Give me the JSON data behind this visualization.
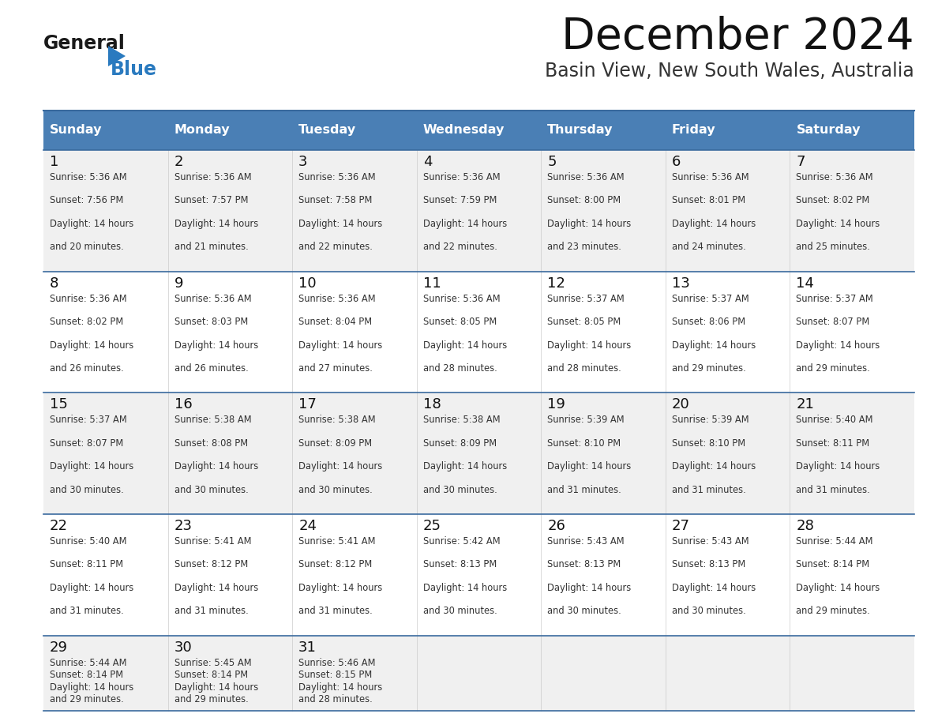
{
  "title": "December 2024",
  "subtitle": "Basin View, New South Wales, Australia",
  "header_color": "#4a7fb5",
  "header_text_color": "#ffffff",
  "days_of_week": [
    "Sunday",
    "Monday",
    "Tuesday",
    "Wednesday",
    "Thursday",
    "Friday",
    "Saturday"
  ],
  "row_bg_even": "#f0f0f0",
  "row_bg_odd": "#ffffff",
  "separator_color": "#3a6a9e",
  "text_color": "#333333",
  "logo_general_color": "#1a1a1a",
  "logo_blue_color": "#2a7abf",
  "logo_triangle_color": "#2a7abf",
  "calendar_data": [
    [
      {
        "day": 1,
        "sunrise": "5:36 AM",
        "sunset": "7:56 PM",
        "daylight": "14 hours and 20 minutes."
      },
      {
        "day": 2,
        "sunrise": "5:36 AM",
        "sunset": "7:57 PM",
        "daylight": "14 hours and 21 minutes."
      },
      {
        "day": 3,
        "sunrise": "5:36 AM",
        "sunset": "7:58 PM",
        "daylight": "14 hours and 22 minutes."
      },
      {
        "day": 4,
        "sunrise": "5:36 AM",
        "sunset": "7:59 PM",
        "daylight": "14 hours and 22 minutes."
      },
      {
        "day": 5,
        "sunrise": "5:36 AM",
        "sunset": "8:00 PM",
        "daylight": "14 hours and 23 minutes."
      },
      {
        "day": 6,
        "sunrise": "5:36 AM",
        "sunset": "8:01 PM",
        "daylight": "14 hours and 24 minutes."
      },
      {
        "day": 7,
        "sunrise": "5:36 AM",
        "sunset": "8:02 PM",
        "daylight": "14 hours and 25 minutes."
      }
    ],
    [
      {
        "day": 8,
        "sunrise": "5:36 AM",
        "sunset": "8:02 PM",
        "daylight": "14 hours and 26 minutes."
      },
      {
        "day": 9,
        "sunrise": "5:36 AM",
        "sunset": "8:03 PM",
        "daylight": "14 hours and 26 minutes."
      },
      {
        "day": 10,
        "sunrise": "5:36 AM",
        "sunset": "8:04 PM",
        "daylight": "14 hours and 27 minutes."
      },
      {
        "day": 11,
        "sunrise": "5:36 AM",
        "sunset": "8:05 PM",
        "daylight": "14 hours and 28 minutes."
      },
      {
        "day": 12,
        "sunrise": "5:37 AM",
        "sunset": "8:05 PM",
        "daylight": "14 hours and 28 minutes."
      },
      {
        "day": 13,
        "sunrise": "5:37 AM",
        "sunset": "8:06 PM",
        "daylight": "14 hours and 29 minutes."
      },
      {
        "day": 14,
        "sunrise": "5:37 AM",
        "sunset": "8:07 PM",
        "daylight": "14 hours and 29 minutes."
      }
    ],
    [
      {
        "day": 15,
        "sunrise": "5:37 AM",
        "sunset": "8:07 PM",
        "daylight": "14 hours and 30 minutes."
      },
      {
        "day": 16,
        "sunrise": "5:38 AM",
        "sunset": "8:08 PM",
        "daylight": "14 hours and 30 minutes."
      },
      {
        "day": 17,
        "sunrise": "5:38 AM",
        "sunset": "8:09 PM",
        "daylight": "14 hours and 30 minutes."
      },
      {
        "day": 18,
        "sunrise": "5:38 AM",
        "sunset": "8:09 PM",
        "daylight": "14 hours and 30 minutes."
      },
      {
        "day": 19,
        "sunrise": "5:39 AM",
        "sunset": "8:10 PM",
        "daylight": "14 hours and 31 minutes."
      },
      {
        "day": 20,
        "sunrise": "5:39 AM",
        "sunset": "8:10 PM",
        "daylight": "14 hours and 31 minutes."
      },
      {
        "day": 21,
        "sunrise": "5:40 AM",
        "sunset": "8:11 PM",
        "daylight": "14 hours and 31 minutes."
      }
    ],
    [
      {
        "day": 22,
        "sunrise": "5:40 AM",
        "sunset": "8:11 PM",
        "daylight": "14 hours and 31 minutes."
      },
      {
        "day": 23,
        "sunrise": "5:41 AM",
        "sunset": "8:12 PM",
        "daylight": "14 hours and 31 minutes."
      },
      {
        "day": 24,
        "sunrise": "5:41 AM",
        "sunset": "8:12 PM",
        "daylight": "14 hours and 31 minutes."
      },
      {
        "day": 25,
        "sunrise": "5:42 AM",
        "sunset": "8:13 PM",
        "daylight": "14 hours and 30 minutes."
      },
      {
        "day": 26,
        "sunrise": "5:43 AM",
        "sunset": "8:13 PM",
        "daylight": "14 hours and 30 minutes."
      },
      {
        "day": 27,
        "sunrise": "5:43 AM",
        "sunset": "8:13 PM",
        "daylight": "14 hours and 30 minutes."
      },
      {
        "day": 28,
        "sunrise": "5:44 AM",
        "sunset": "8:14 PM",
        "daylight": "14 hours and 29 minutes."
      }
    ],
    [
      {
        "day": 29,
        "sunrise": "5:44 AM",
        "sunset": "8:14 PM",
        "daylight": "14 hours and 29 minutes."
      },
      {
        "day": 30,
        "sunrise": "5:45 AM",
        "sunset": "8:14 PM",
        "daylight": "14 hours and 29 minutes."
      },
      {
        "day": 31,
        "sunrise": "5:46 AM",
        "sunset": "8:15 PM",
        "daylight": "14 hours and 28 minutes."
      },
      null,
      null,
      null,
      null
    ]
  ]
}
